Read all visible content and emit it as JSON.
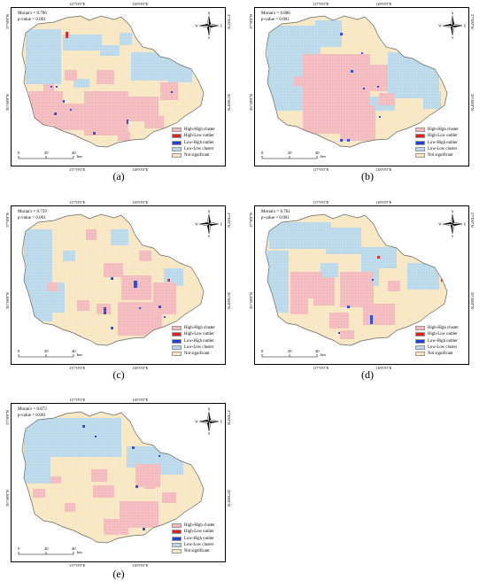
{
  "legend": [
    {
      "label": "High-High cluster",
      "color": "#f3b8bb"
    },
    {
      "label": "High-Low outlier",
      "color": "#e02020"
    },
    {
      "label": "Low-High outlier",
      "color": "#2040d8"
    },
    {
      "label": "Low-Low cluster",
      "color": "#b8d8ea"
    },
    {
      "label": "Not significant",
      "color": "#f7e6c0"
    }
  ],
  "coords": {
    "lon_left": "117°0'0\"E",
    "lon_right": "118°0'0\"E",
    "lat_top": "27°0'0\"N",
    "lat_mid": "26°30'0\"N"
  },
  "scale": {
    "ticks": [
      "0",
      "20",
      "40"
    ],
    "unit": "km"
  },
  "compass": {
    "n": "N",
    "s": "S",
    "e": "E",
    "w": "W"
  },
  "panels": [
    {
      "label": "(a)",
      "letter": "a",
      "morans": "Moran's = 0.796",
      "pvalue": "p-value = 0.001"
    },
    {
      "label": "(b)",
      "letter": "b",
      "morans": "Moran's = 0.806",
      "pvalue": "p-value = 0.001"
    },
    {
      "label": "(c)",
      "letter": "c",
      "morans": "Moran's = 0.759",
      "pvalue": "p-value = 0.001"
    },
    {
      "label": "(d)",
      "letter": "d",
      "morans": "Moran's = 0.761",
      "pvalue": "p-value = 0.001"
    },
    {
      "label": "(e)",
      "letter": "e",
      "morans": "Moran's = 0.873",
      "pvalue": "p-value = 0.001"
    }
  ]
}
